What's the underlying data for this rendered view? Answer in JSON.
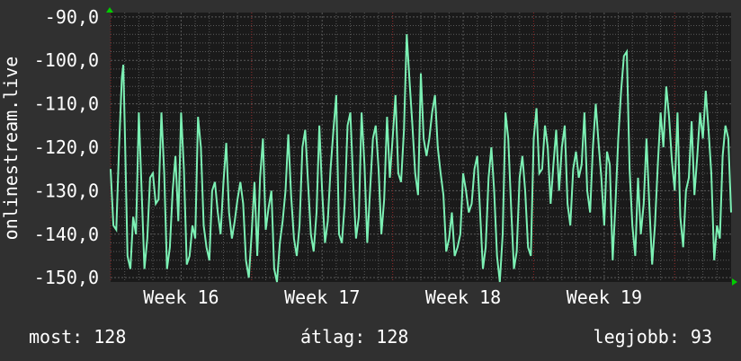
{
  "chart_data": {
    "type": "line",
    "ylabel": "onlinestream.live",
    "ylim": [
      -151,
      -89
    ],
    "y_ticks": [
      -90,
      -100,
      -110,
      -120,
      -130,
      -140,
      -150
    ],
    "y_tick_labels": [
      "-90,0",
      "-100,0",
      "-110,0",
      "-120,0",
      "-130,0",
      "-140,0",
      "-150,0"
    ],
    "x_range": [
      0,
      4.4
    ],
    "x_ticks": [
      0.5,
      1.5,
      2.5,
      3.5
    ],
    "x_tick_labels": [
      "Week 16",
      "Week 17",
      "Week 18",
      "Week 19"
    ],
    "grid": true,
    "series": [
      {
        "color": "#7cf0b4",
        "keypoints": [
          [
            0.0,
            -125
          ],
          [
            0.02,
            -138
          ],
          [
            0.04,
            -139
          ],
          [
            0.06,
            -120
          ],
          [
            0.08,
            -104
          ],
          [
            0.09,
            -101
          ],
          [
            0.1,
            -115
          ],
          [
            0.12,
            -145
          ],
          [
            0.14,
            -148
          ],
          [
            0.16,
            -136
          ],
          [
            0.18,
            -140
          ],
          [
            0.2,
            -112
          ],
          [
            0.22,
            -130
          ],
          [
            0.24,
            -148
          ],
          [
            0.26,
            -141
          ],
          [
            0.28,
            -127
          ],
          [
            0.3,
            -126
          ],
          [
            0.32,
            -133
          ],
          [
            0.34,
            -132
          ],
          [
            0.36,
            -112
          ],
          [
            0.38,
            -126
          ],
          [
            0.4,
            -148
          ],
          [
            0.42,
            -143
          ],
          [
            0.44,
            -130
          ],
          [
            0.46,
            -122
          ],
          [
            0.48,
            -137
          ],
          [
            0.5,
            -112
          ],
          [
            0.52,
            -125
          ],
          [
            0.54,
            -147
          ],
          [
            0.56,
            -145
          ],
          [
            0.58,
            -138
          ],
          [
            0.6,
            -141
          ],
          [
            0.62,
            -113
          ],
          [
            0.64,
            -120
          ],
          [
            0.66,
            -138
          ],
          [
            0.68,
            -143
          ],
          [
            0.7,
            -146
          ],
          [
            0.72,
            -130
          ],
          [
            0.74,
            -128
          ],
          [
            0.76,
            -135
          ],
          [
            0.78,
            -140
          ],
          [
            0.8,
            -128
          ],
          [
            0.82,
            -119
          ],
          [
            0.84,
            -135
          ],
          [
            0.86,
            -141
          ],
          [
            0.88,
            -137
          ],
          [
            0.9,
            -132
          ],
          [
            0.92,
            -128
          ],
          [
            0.94,
            -133
          ],
          [
            0.96,
            -146
          ],
          [
            0.98,
            -150
          ],
          [
            1.0,
            -140
          ],
          [
            1.02,
            -128
          ],
          [
            1.04,
            -145
          ],
          [
            1.06,
            -127
          ],
          [
            1.08,
            -118
          ],
          [
            1.1,
            -139
          ],
          [
            1.12,
            -134
          ],
          [
            1.14,
            -130
          ],
          [
            1.16,
            -148
          ],
          [
            1.18,
            -151
          ],
          [
            1.2,
            -142
          ],
          [
            1.22,
            -137
          ],
          [
            1.24,
            -130
          ],
          [
            1.26,
            -117
          ],
          [
            1.28,
            -131
          ],
          [
            1.3,
            -141
          ],
          [
            1.32,
            -145
          ],
          [
            1.34,
            -138
          ],
          [
            1.36,
            -120
          ],
          [
            1.38,
            -116
          ],
          [
            1.4,
            -128
          ],
          [
            1.42,
            -140
          ],
          [
            1.44,
            -144
          ],
          [
            1.46,
            -135
          ],
          [
            1.48,
            -115
          ],
          [
            1.5,
            -130
          ],
          [
            1.52,
            -142
          ],
          [
            1.54,
            -137
          ],
          [
            1.56,
            -125
          ],
          [
            1.58,
            -116
          ],
          [
            1.6,
            -108
          ],
          [
            1.62,
            -140
          ],
          [
            1.64,
            -142
          ],
          [
            1.66,
            -133
          ],
          [
            1.68,
            -115
          ],
          [
            1.7,
            -112
          ],
          [
            1.72,
            -128
          ],
          [
            1.74,
            -141
          ],
          [
            1.76,
            -136
          ],
          [
            1.78,
            -112
          ],
          [
            1.8,
            -124
          ],
          [
            1.82,
            -142
          ],
          [
            1.84,
            -130
          ],
          [
            1.86,
            -118
          ],
          [
            1.88,
            -115
          ],
          [
            1.9,
            -125
          ],
          [
            1.92,
            -140
          ],
          [
            1.94,
            -132
          ],
          [
            1.96,
            -113
          ],
          [
            1.98,
            -127
          ],
          [
            2.0,
            -118
          ],
          [
            2.02,
            -108
          ],
          [
            2.04,
            -126
          ],
          [
            2.06,
            -128
          ],
          [
            2.08,
            -116
          ],
          [
            2.1,
            -94
          ],
          [
            2.12,
            -105
          ],
          [
            2.14,
            -115
          ],
          [
            2.16,
            -126
          ],
          [
            2.18,
            -131
          ],
          [
            2.2,
            -103
          ],
          [
            2.22,
            -118
          ],
          [
            2.24,
            -122
          ],
          [
            2.26,
            -118
          ],
          [
            2.28,
            -112
          ],
          [
            2.3,
            -108
          ],
          [
            2.32,
            -120
          ],
          [
            2.34,
            -126
          ],
          [
            2.36,
            -131
          ],
          [
            2.38,
            -144
          ],
          [
            2.4,
            -141
          ],
          [
            2.42,
            -135
          ],
          [
            2.44,
            -145
          ],
          [
            2.46,
            -143
          ],
          [
            2.48,
            -140
          ],
          [
            2.5,
            -126
          ],
          [
            2.52,
            -130
          ],
          [
            2.54,
            -135
          ],
          [
            2.56,
            -133
          ],
          [
            2.58,
            -125
          ],
          [
            2.6,
            -122
          ],
          [
            2.62,
            -135
          ],
          [
            2.64,
            -148
          ],
          [
            2.66,
            -143
          ],
          [
            2.68,
            -127
          ],
          [
            2.7,
            -120
          ],
          [
            2.72,
            -130
          ],
          [
            2.74,
            -145
          ],
          [
            2.76,
            -151
          ],
          [
            2.78,
            -140
          ],
          [
            2.8,
            -112
          ],
          [
            2.82,
            -118
          ],
          [
            2.84,
            -134
          ],
          [
            2.86,
            -148
          ],
          [
            2.88,
            -144
          ],
          [
            2.9,
            -127
          ],
          [
            2.92,
            -122
          ],
          [
            2.94,
            -130
          ],
          [
            2.96,
            -143
          ],
          [
            2.98,
            -145
          ],
          [
            3.0,
            -118
          ],
          [
            3.02,
            -111
          ],
          [
            3.04,
            -126
          ],
          [
            3.06,
            -125
          ],
          [
            3.08,
            -115
          ],
          [
            3.1,
            -120
          ],
          [
            3.12,
            -133
          ],
          [
            3.14,
            -124
          ],
          [
            3.16,
            -116
          ],
          [
            3.18,
            -130
          ],
          [
            3.2,
            -120
          ],
          [
            3.22,
            -115
          ],
          [
            3.24,
            -133
          ],
          [
            3.26,
            -138
          ],
          [
            3.28,
            -125
          ],
          [
            3.3,
            -121
          ],
          [
            3.32,
            -127
          ],
          [
            3.34,
            -124
          ],
          [
            3.36,
            -112
          ],
          [
            3.38,
            -130
          ],
          [
            3.4,
            -135
          ],
          [
            3.42,
            -120
          ],
          [
            3.44,
            -110
          ],
          [
            3.46,
            -119
          ],
          [
            3.48,
            -127
          ],
          [
            3.5,
            -138
          ],
          [
            3.52,
            -121
          ],
          [
            3.54,
            -124
          ],
          [
            3.56,
            -146
          ],
          [
            3.58,
            -133
          ],
          [
            3.6,
            -118
          ],
          [
            3.62,
            -107
          ],
          [
            3.64,
            -99
          ],
          [
            3.66,
            -98
          ],
          [
            3.68,
            -125
          ],
          [
            3.7,
            -138
          ],
          [
            3.72,
            -145
          ],
          [
            3.74,
            -127
          ],
          [
            3.76,
            -140
          ],
          [
            3.78,
            -133
          ],
          [
            3.8,
            -118
          ],
          [
            3.82,
            -133
          ],
          [
            3.84,
            -147
          ],
          [
            3.86,
            -138
          ],
          [
            3.88,
            -124
          ],
          [
            3.9,
            -112
          ],
          [
            3.92,
            -120
          ],
          [
            3.94,
            -106
          ],
          [
            3.96,
            -113
          ],
          [
            3.98,
            -123
          ],
          [
            4.0,
            -130
          ],
          [
            4.02,
            -112
          ],
          [
            4.04,
            -136
          ],
          [
            4.06,
            -143
          ],
          [
            4.08,
            -130
          ],
          [
            4.1,
            -127
          ],
          [
            4.12,
            -114
          ],
          [
            4.14,
            -131
          ],
          [
            4.16,
            -122
          ],
          [
            4.18,
            -112
          ],
          [
            4.2,
            -118
          ],
          [
            4.22,
            -107
          ],
          [
            4.24,
            -116
          ],
          [
            4.26,
            -126
          ],
          [
            4.28,
            -146
          ],
          [
            4.3,
            -138
          ],
          [
            4.32,
            -141
          ],
          [
            4.34,
            -122
          ],
          [
            4.36,
            -115
          ],
          [
            4.38,
            -118
          ],
          [
            4.4,
            -135
          ]
        ]
      }
    ]
  },
  "stats": {
    "now": "most: 128",
    "avg": "átlag: 128",
    "max": "legjobb: 93"
  },
  "colors": {
    "background": "#303030",
    "plot_background": "#1a1a1a",
    "grid": "#5a5a5a",
    "line": "#7cf0b4",
    "axis_arrow": "#00cc00",
    "text": "#ffffff"
  }
}
